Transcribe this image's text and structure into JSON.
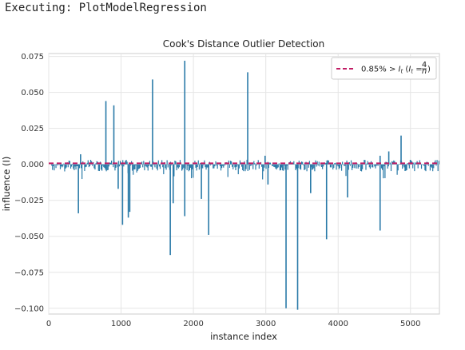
{
  "header": {
    "text": "Executing: PlotModelRegression"
  },
  "chart_data": {
    "type": "bar",
    "title": "Cook's Distance Outlier Detection",
    "xlabel": "instance index",
    "ylabel": "influence (I)",
    "xlim": [
      0,
      5400
    ],
    "ylim": [
      -0.104,
      0.077
    ],
    "xticks": [
      0,
      1000,
      2000,
      3000,
      4000,
      5000
    ],
    "xtick_labels": [
      "0",
      "1000",
      "2000",
      "3000",
      "4000",
      "5000"
    ],
    "yticks": [
      0.075,
      0.05,
      0.025,
      0.0,
      -0.025,
      -0.05,
      -0.075,
      -0.1
    ],
    "ytick_labels": [
      "0.075",
      "0.050",
      "0.025",
      "0.000",
      "−0.025",
      "−0.050",
      "−0.075",
      "−0.100"
    ],
    "grid": true,
    "threshold": {
      "value": 0.00074,
      "label_pre": "0.85% > ",
      "label_main": "I",
      "label_sub": "t",
      "label_mid": " (",
      "label_main2": "I",
      "label_sub2": "t",
      "label_eq": " = ",
      "label_num": "4",
      "label_den": "n",
      "label_post": ")",
      "color": "#c11c64",
      "style": "dashed"
    },
    "legend_position": "top-right",
    "bar_color": "#2a7aa8",
    "outliers": [
      {
        "x": 790,
        "y": 0.044
      },
      {
        "x": 900,
        "y": 0.041
      },
      {
        "x": 1435,
        "y": 0.059
      },
      {
        "x": 1880,
        "y": 0.072
      },
      {
        "x": 2750,
        "y": 0.064
      },
      {
        "x": 4870,
        "y": 0.02
      },
      {
        "x": 4700,
        "y": 0.009
      },
      {
        "x": 4580,
        "y": 0.006
      },
      {
        "x": 440,
        "y": 0.007
      },
      {
        "x": 2990,
        "y": 0.006
      },
      {
        "x": 410,
        "y": -0.034
      },
      {
        "x": 1020,
        "y": -0.042
      },
      {
        "x": 1100,
        "y": -0.037
      },
      {
        "x": 1120,
        "y": -0.033
      },
      {
        "x": 1680,
        "y": -0.063
      },
      {
        "x": 1720,
        "y": -0.027
      },
      {
        "x": 1880,
        "y": -0.036
      },
      {
        "x": 2110,
        "y": -0.024
      },
      {
        "x": 2210,
        "y": -0.049
      },
      {
        "x": 3280,
        "y": -0.1
      },
      {
        "x": 3440,
        "y": -0.101
      },
      {
        "x": 3840,
        "y": -0.052
      },
      {
        "x": 4130,
        "y": -0.023
      },
      {
        "x": 4580,
        "y": -0.046
      },
      {
        "x": 3620,
        "y": -0.02
      },
      {
        "x": 3030,
        "y": -0.014
      },
      {
        "x": 960,
        "y": -0.017
      }
    ]
  }
}
